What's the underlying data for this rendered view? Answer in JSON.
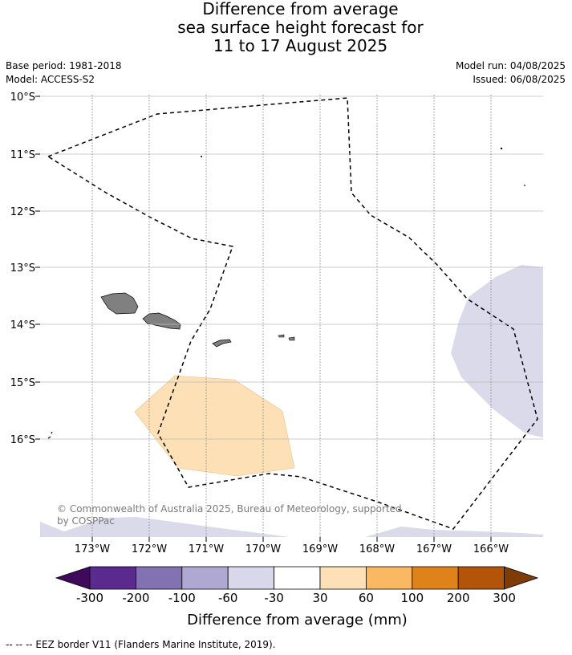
{
  "title": {
    "line1": "Difference from average",
    "line2": "sea surface height forecast for",
    "line3": "11 to 17 August 2025"
  },
  "meta": {
    "base_period": "Base period: 1981-2018",
    "model": "Model: ACCESS-S2",
    "model_run": "Model run: 04/08/2025",
    "issued": "Issued: 06/08/2025"
  },
  "map": {
    "lat_labels": [
      "10°S",
      "11°S",
      "12°S",
      "13°S",
      "14°S",
      "15°S",
      "16°S"
    ],
    "lon_labels": [
      "173°W",
      "172°W",
      "171°W",
      "170°W",
      "169°W",
      "168°W",
      "167°W",
      "166°W"
    ],
    "copyright_line1": "© Commonwealth of Australia 2025, Bureau of Meteorology, supported",
    "copyright_line2": "by COSPPac",
    "fill_colors": {
      "positive_30_60": "#fde0b6",
      "negative_30_60": "#d8d8ea",
      "land": "#808080"
    }
  },
  "colorbar": {
    "ticks": [
      "-300",
      "-200",
      "-100",
      "-60",
      "-30",
      "30",
      "60",
      "100",
      "200",
      "300"
    ],
    "colors": [
      "#3f0a5c",
      "#5b2a8f",
      "#8372b2",
      "#afa8d2",
      "#d8d8ea",
      "#ffffff",
      "#fde0b6",
      "#fbb862",
      "#e0821a",
      "#b25409",
      "#7f3b08"
    ],
    "title": "Difference from average (mm)"
  },
  "footnote": "--  --  -- EEZ border V11 (Flanders Marine Institute, 2019)."
}
